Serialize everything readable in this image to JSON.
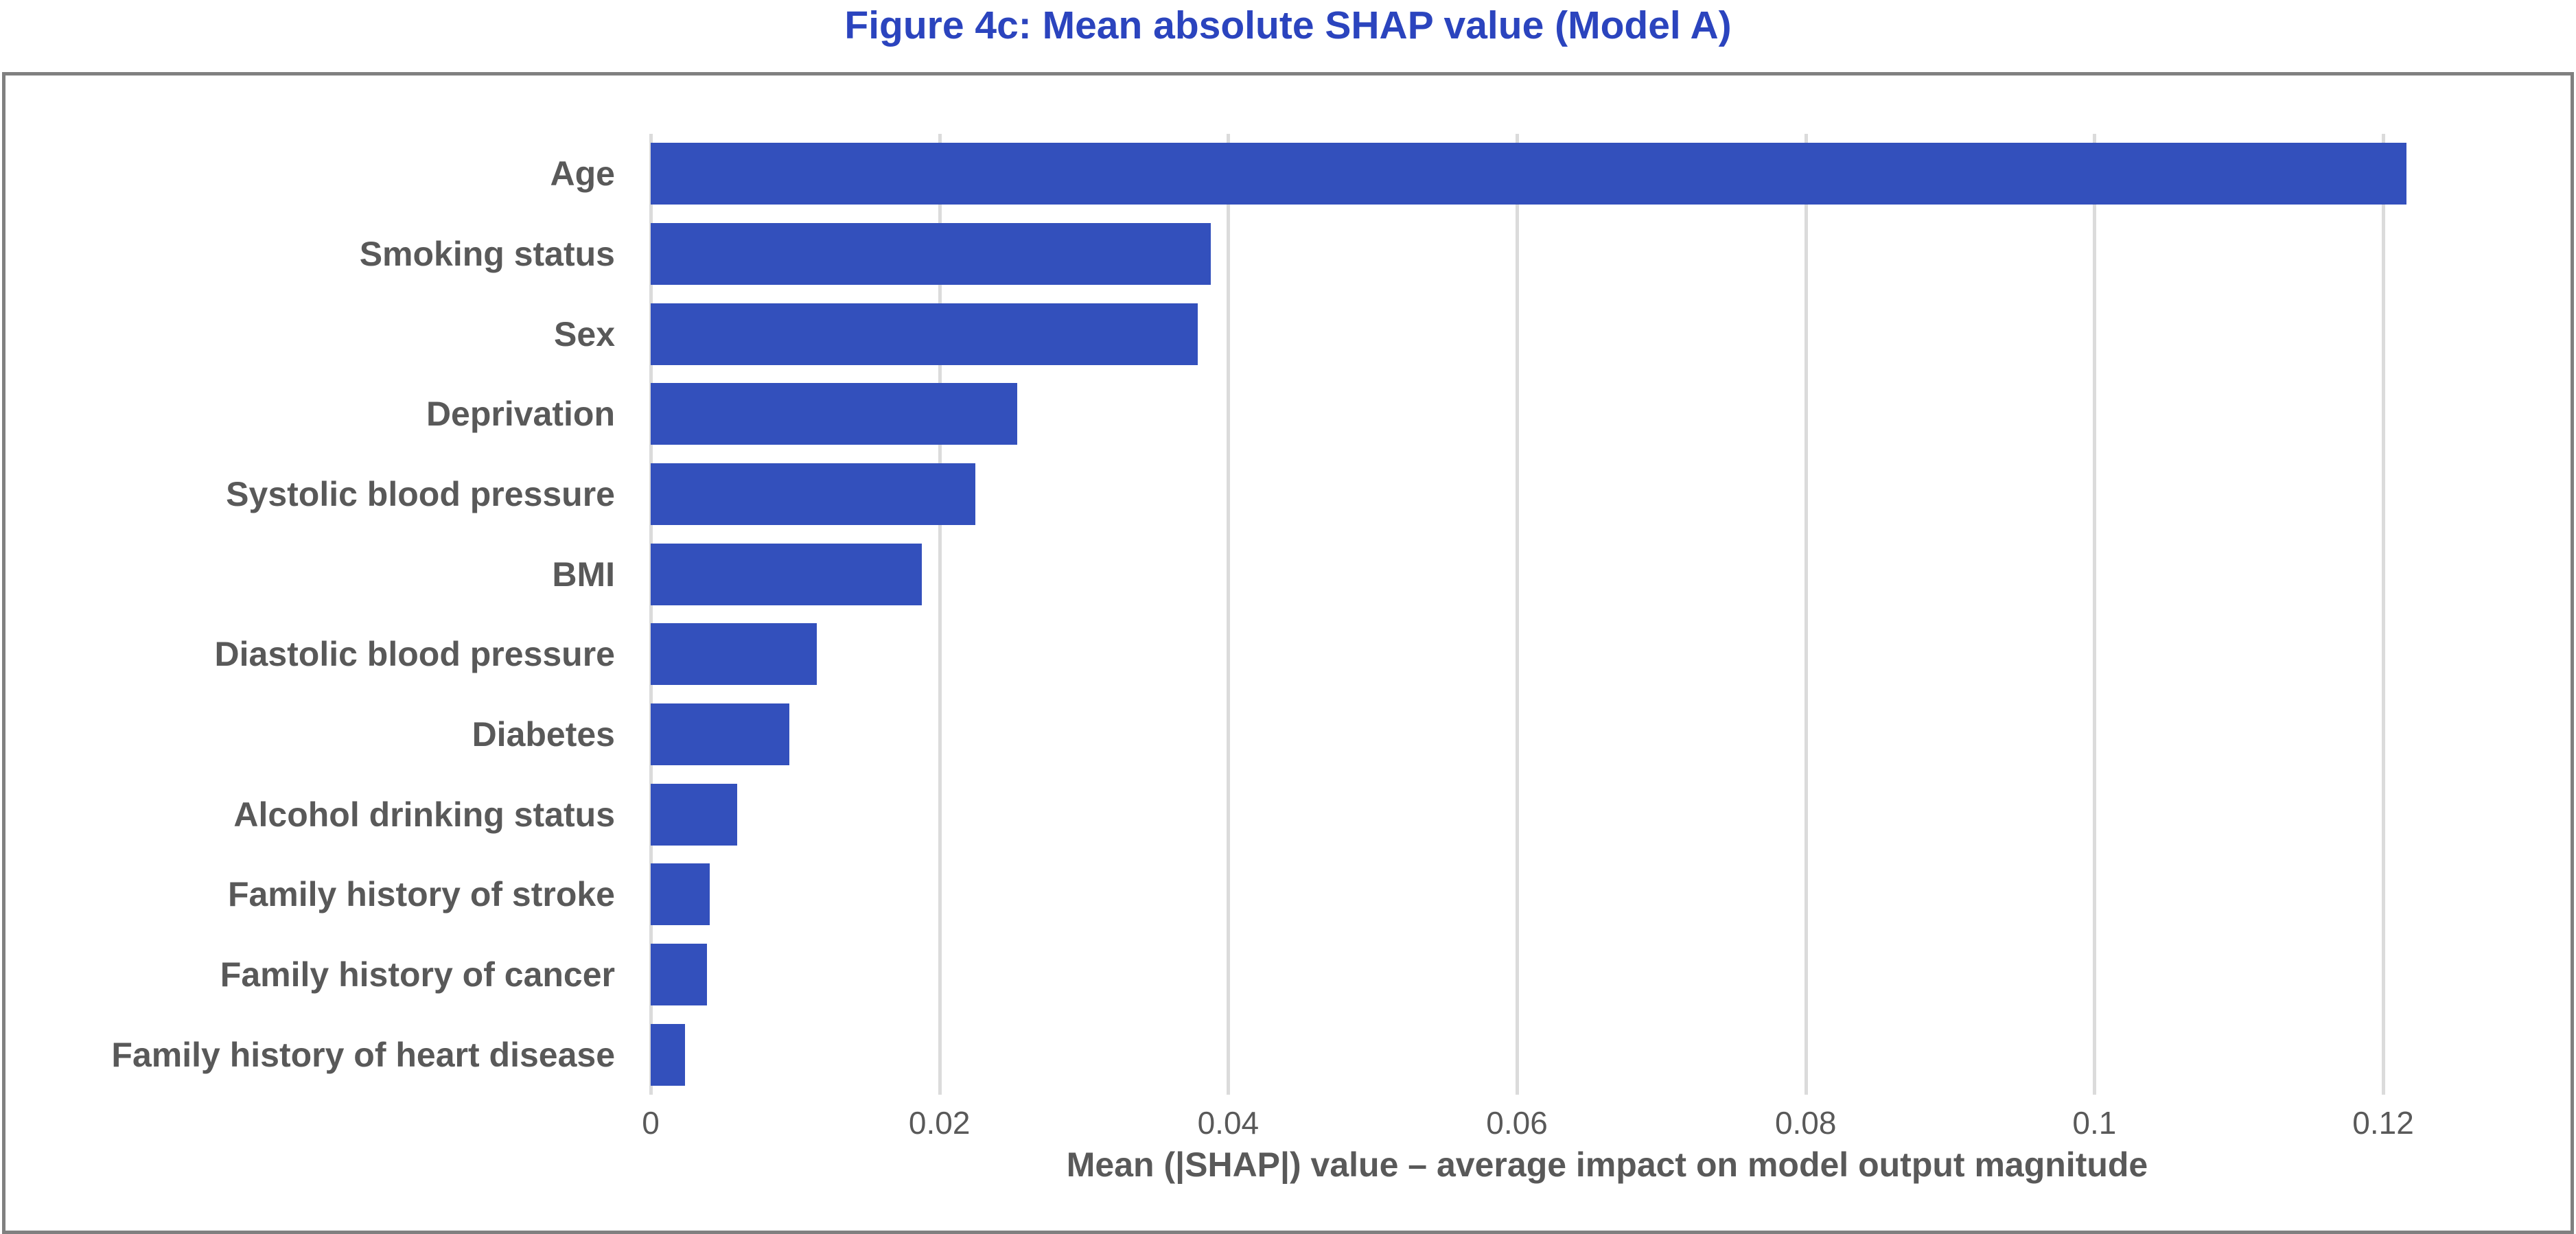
{
  "title": {
    "text": "Figure 4c: Mean absolute SHAP value (Model A)",
    "color": "#2B44BE"
  },
  "chart_data": {
    "type": "bar",
    "orientation": "horizontal",
    "title": "Figure 4c: Mean absolute SHAP value (Model A)",
    "categories": [
      "Age",
      "Smoking status",
      "Sex",
      "Deprivation",
      "Systolic blood pressure",
      "BMI",
      "Diastolic blood pressure",
      "Diabetes",
      "Alcohol drinking status",
      "Family history of stroke",
      "Family history of cancer",
      "Family history of heart disease"
    ],
    "values": [
      0.1216,
      0.0388,
      0.0379,
      0.0254,
      0.0225,
      0.0188,
      0.0115,
      0.0096,
      0.006,
      0.0041,
      0.0039,
      0.0024
    ],
    "xlabel": "Mean (|SHAP|) value – average impact on model output magnitude",
    "ylabel": "",
    "xticks": [
      0,
      0.02,
      0.04,
      0.06,
      0.08,
      0.1,
      0.12
    ],
    "xtick_labels": [
      "0",
      "0.02",
      "0.04",
      "0.06",
      "0.08",
      "0.1",
      "0.12"
    ],
    "xlim": [
      0,
      0.1325
    ],
    "grid": true,
    "legend": false,
    "colors": {
      "bar": "#3350BC",
      "title": "#2B44BE",
      "axis_text": "#595959",
      "gridline": "#DBDBDB",
      "frame_border": "#808080",
      "background": "#FFFFFF"
    }
  }
}
